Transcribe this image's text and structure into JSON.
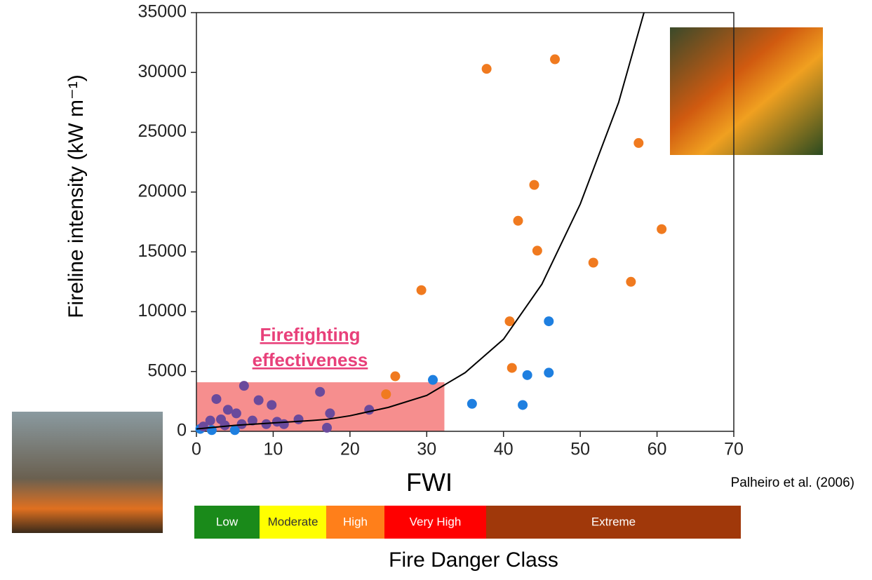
{
  "chart_data": {
    "type": "scatter",
    "x_label": "FWI",
    "y_label": "Fireline intensity (kW m⁻¹)",
    "xlim": [
      0,
      70
    ],
    "ylim": [
      0,
      35000
    ],
    "xticks": [
      0,
      10,
      20,
      30,
      40,
      50,
      60,
      70
    ],
    "yticks": [
      0,
      5000,
      10000,
      15000,
      20000,
      25000,
      30000,
      35000
    ],
    "series": [
      {
        "color": "#f07a1f",
        "x": [
          25.9,
          24.7,
          29.3,
          37.8,
          46.7,
          57.6,
          44.0,
          41.9,
          44.4,
          60.6,
          51.7,
          56.6,
          40.8,
          41.1
        ],
        "values": [
          4600,
          3100,
          11800,
          30300,
          31100,
          24100,
          20600,
          17600,
          15100,
          16900,
          14100,
          12500,
          9200,
          5300
        ]
      },
      {
        "color": "#1e7fe0",
        "x": [
          30.8,
          35.9,
          42.5,
          43.1,
          45.9,
          45.9,
          0.5,
          2.0,
          5.0
        ],
        "values": [
          4300,
          2300,
          2200,
          4700,
          4900,
          9200,
          200,
          100,
          100
        ]
      },
      {
        "color": "#6a4a9c",
        "x": [
          6.2,
          2.6,
          8.1,
          9.8,
          16.1,
          17.4,
          17.0,
          22.5,
          4.1,
          5.2,
          13.3,
          11.4,
          1.8,
          3.2,
          7.3,
          9.1,
          0.9,
          3.7,
          5.9,
          10.5
        ],
        "values": [
          3800,
          2700,
          2600,
          2200,
          3300,
          1500,
          300,
          1800,
          1800,
          1500,
          1000,
          600,
          900,
          1000,
          900,
          600,
          400,
          500,
          600,
          800
        ]
      }
    ],
    "fit_curve": {
      "color": "#000000",
      "x": [
        0,
        5,
        10,
        15,
        17,
        20,
        25,
        30,
        35,
        40,
        45,
        50,
        55,
        58.3
      ],
      "values": [
        200,
        500,
        700,
        900,
        1000,
        1300,
        2000,
        3000,
        4900,
        7700,
        12300,
        19000,
        27500,
        35000
      ]
    },
    "effectiveness_zone": {
      "label_lines": [
        "Firefighting",
        "effectiveness"
      ],
      "color": "#f47a7a",
      "x": [
        0,
        32.3
      ],
      "y": [
        0,
        4100
      ]
    },
    "citation": "Palheiro et al. (2006)",
    "danger_class_title": "Fire Danger Class",
    "danger_classes": [
      {
        "label": "Low",
        "color": "#1a8a1a"
      },
      {
        "label": "Moderate",
        "color": "#ffff00"
      },
      {
        "label": "High",
        "color": "#ff7f1a"
      },
      {
        "label": "Very High",
        "color": "#ff0000"
      },
      {
        "label": "Extreme",
        "color": "#a0380a"
      }
    ]
  }
}
